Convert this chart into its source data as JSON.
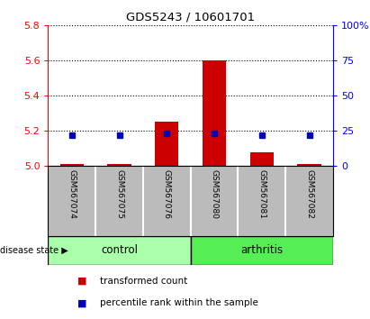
{
  "title": "GDS5243 / 10601701",
  "samples": [
    "GSM567074",
    "GSM567075",
    "GSM567076",
    "GSM567080",
    "GSM567081",
    "GSM567082"
  ],
  "transformed_count": [
    5.01,
    5.01,
    5.25,
    5.6,
    5.08,
    5.01
  ],
  "percentile_rank": [
    22,
    22,
    23,
    23,
    22,
    22
  ],
  "ylim_left": [
    5.0,
    5.8
  ],
  "ylim_right": [
    0,
    100
  ],
  "yticks_left": [
    5.0,
    5.2,
    5.4,
    5.6,
    5.8
  ],
  "yticks_right": [
    0,
    25,
    50,
    75,
    100
  ],
  "ytick_right_labels": [
    "0",
    "25",
    "50",
    "75",
    "100%"
  ],
  "bar_color": "#CC0000",
  "dot_color": "#0000BB",
  "sample_bg": "#BBBBBB",
  "control_bg": "#AAFFAA",
  "arthritis_bg": "#55EE55",
  "arrow_label": "disease state",
  "legend_items": [
    "transformed count",
    "percentile rank within the sample"
  ]
}
